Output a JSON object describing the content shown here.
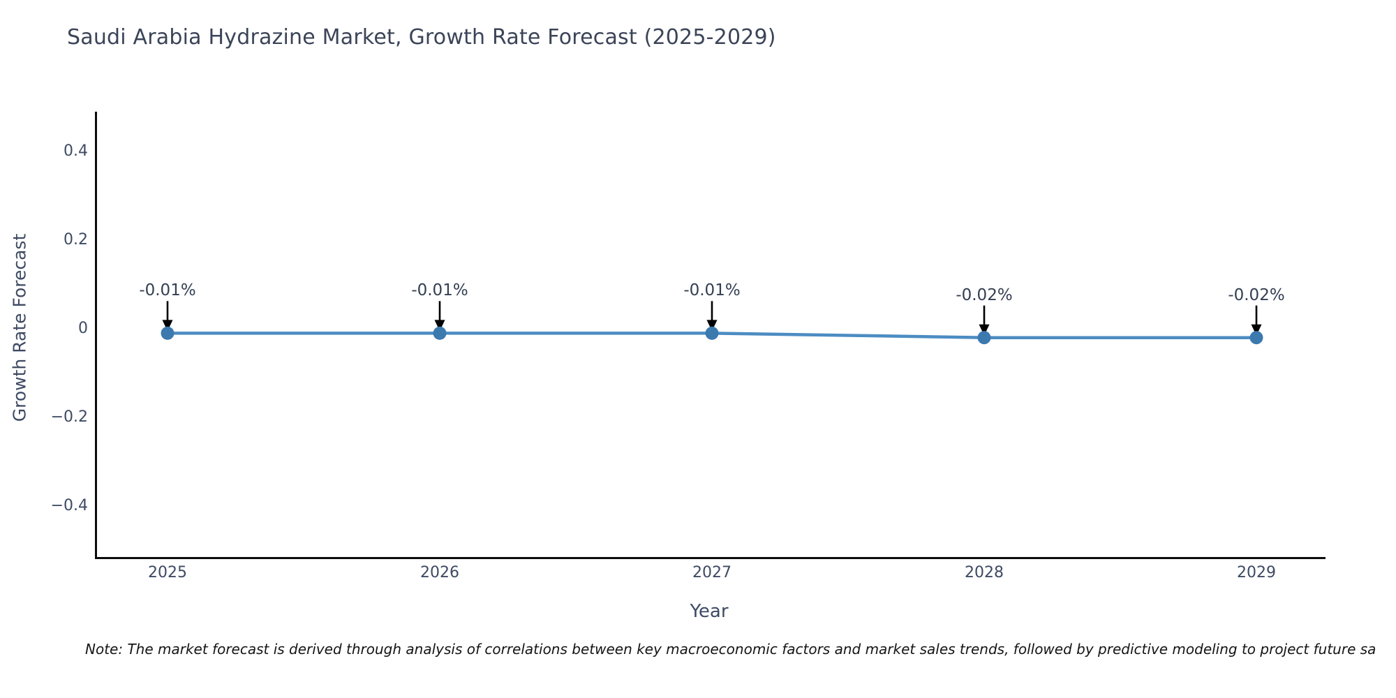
{
  "title": "Saudi Arabia Hydrazine Market, Growth Rate Forecast (2025-2029)",
  "footnote": "Note: The market forecast is derived through analysis of correlations between key macroeconomic factors and market sales trends, followed by predictive modeling to project future sa",
  "colors": {
    "line": "#4c8cc2",
    "marker": "#3c79af",
    "arrow": "#000000",
    "spine": "#0c0c0c",
    "title_text": "#3b4458",
    "tick_text": "#3e4a63"
  },
  "chart_data": {
    "type": "line",
    "title": "Saudi Arabia Hydrazine Market, Growth Rate Forecast (2025-2029)",
    "xlabel": "Year",
    "ylabel": "Growth Rate Forecast",
    "x": [
      2025,
      2026,
      2027,
      2028,
      2029
    ],
    "y": [
      -0.01,
      -0.01,
      -0.01,
      -0.02,
      -0.02
    ],
    "point_labels": [
      "-0.01%",
      "-0.01%",
      "-0.01%",
      "-0.02%",
      "-0.02%"
    ],
    "xtick_labels": [
      "2025",
      "2026",
      "2027",
      "2028",
      "2029"
    ],
    "ytick_labels": [
      "0.4",
      "0.2",
      "0",
      "−0.2",
      "−0.4"
    ],
    "yticks": [
      0.4,
      0.2,
      0,
      -0.2,
      -0.4
    ],
    "ylim": [
      -0.52,
      0.49
    ],
    "grid": false,
    "legend": "none",
    "annotation_style": "value above point with downward black arrow"
  }
}
